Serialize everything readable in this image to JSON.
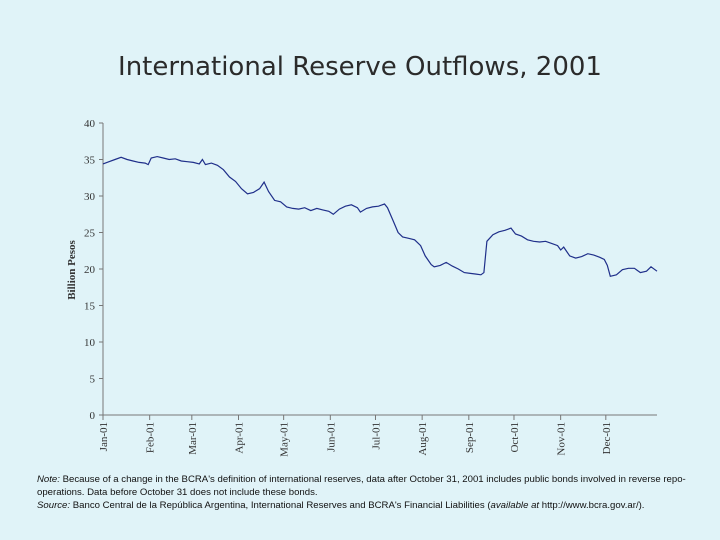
{
  "chart_data": {
    "type": "line",
    "title": "International Reserve Outflows, 2001",
    "ylabel": "Billion Pesos",
    "xlabel": "",
    "ylim": [
      0,
      40
    ],
    "yticks": [
      0,
      5,
      10,
      15,
      20,
      25,
      30,
      35,
      40
    ],
    "xlim": [
      "2001-01-01",
      "2001-12-31"
    ],
    "xtick_labels": [
      "Jan-01",
      "Feb-01",
      "Mar-01",
      "Apr-01",
      "May-01",
      "Jun-01",
      "Jul-01",
      "Aug-01",
      "Sep-01",
      "Oct-01",
      "Nov-01",
      "Dec-01"
    ],
    "xtick_dates": [
      "2001-01-01",
      "2001-02-01",
      "2001-03-01",
      "2001-04-01",
      "2001-05-01",
      "2001-06-01",
      "2001-07-01",
      "2001-08-01",
      "2001-09-01",
      "2001-10-01",
      "2001-11-01",
      "2001-12-01"
    ],
    "grid": false,
    "series": [
      {
        "color": "#1f2f8a",
        "points": [
          [
            "2001-01-01",
            34.4
          ],
          [
            "2001-01-05",
            34.7
          ],
          [
            "2001-01-09",
            35.0
          ],
          [
            "2001-01-13",
            35.3
          ],
          [
            "2001-01-17",
            35.0
          ],
          [
            "2001-01-21",
            34.8
          ],
          [
            "2001-01-25",
            34.6
          ],
          [
            "2001-01-29",
            34.5
          ],
          [
            "2001-01-31",
            34.3
          ],
          [
            "2001-02-02",
            35.2
          ],
          [
            "2001-02-06",
            35.4
          ],
          [
            "2001-02-10",
            35.2
          ],
          [
            "2001-02-14",
            35.0
          ],
          [
            "2001-02-18",
            35.1
          ],
          [
            "2001-02-22",
            34.8
          ],
          [
            "2001-02-26",
            34.7
          ],
          [
            "2001-03-02",
            34.6
          ],
          [
            "2001-03-06",
            34.4
          ],
          [
            "2001-03-08",
            35.0
          ],
          [
            "2001-03-10",
            34.3
          ],
          [
            "2001-03-14",
            34.5
          ],
          [
            "2001-03-18",
            34.2
          ],
          [
            "2001-03-22",
            33.6
          ],
          [
            "2001-03-26",
            32.6
          ],
          [
            "2001-03-30",
            32.0
          ],
          [
            "2001-04-03",
            31.0
          ],
          [
            "2001-04-07",
            30.3
          ],
          [
            "2001-04-11",
            30.5
          ],
          [
            "2001-04-15",
            31.0
          ],
          [
            "2001-04-18",
            31.9
          ],
          [
            "2001-04-21",
            30.6
          ],
          [
            "2001-04-25",
            29.4
          ],
          [
            "2001-04-29",
            29.2
          ],
          [
            "2001-05-03",
            28.5
          ],
          [
            "2001-05-07",
            28.3
          ],
          [
            "2001-05-11",
            28.2
          ],
          [
            "2001-05-15",
            28.4
          ],
          [
            "2001-05-19",
            28.0
          ],
          [
            "2001-05-23",
            28.3
          ],
          [
            "2001-05-27",
            28.1
          ],
          [
            "2001-05-31",
            27.9
          ],
          [
            "2001-06-03",
            27.5
          ],
          [
            "2001-06-07",
            28.2
          ],
          [
            "2001-06-11",
            28.6
          ],
          [
            "2001-06-15",
            28.8
          ],
          [
            "2001-06-19",
            28.4
          ],
          [
            "2001-06-21",
            27.8
          ],
          [
            "2001-06-25",
            28.3
          ],
          [
            "2001-06-29",
            28.5
          ],
          [
            "2001-07-03",
            28.6
          ],
          [
            "2001-07-07",
            28.9
          ],
          [
            "2001-07-09",
            28.4
          ],
          [
            "2001-07-13",
            26.5
          ],
          [
            "2001-07-16",
            25.0
          ],
          [
            "2001-07-19",
            24.4
          ],
          [
            "2001-07-23",
            24.2
          ],
          [
            "2001-07-27",
            24.0
          ],
          [
            "2001-07-31",
            23.2
          ],
          [
            "2001-08-03",
            21.8
          ],
          [
            "2001-08-07",
            20.6
          ],
          [
            "2001-08-09",
            20.3
          ],
          [
            "2001-08-13",
            20.5
          ],
          [
            "2001-08-17",
            20.9
          ],
          [
            "2001-08-21",
            20.4
          ],
          [
            "2001-08-25",
            20.0
          ],
          [
            "2001-08-29",
            19.5
          ],
          [
            "2001-09-02",
            19.4
          ],
          [
            "2001-09-06",
            19.3
          ],
          [
            "2001-09-09",
            19.2
          ],
          [
            "2001-09-11",
            19.5
          ],
          [
            "2001-09-13",
            23.8
          ],
          [
            "2001-09-17",
            24.7
          ],
          [
            "2001-09-21",
            25.1
          ],
          [
            "2001-09-25",
            25.3
          ],
          [
            "2001-09-29",
            25.6
          ],
          [
            "2001-10-02",
            24.8
          ],
          [
            "2001-10-06",
            24.5
          ],
          [
            "2001-10-10",
            24.0
          ],
          [
            "2001-10-14",
            23.8
          ],
          [
            "2001-10-18",
            23.7
          ],
          [
            "2001-10-22",
            23.8
          ],
          [
            "2001-10-26",
            23.5
          ],
          [
            "2001-10-30",
            23.2
          ],
          [
            "2001-11-01",
            22.6
          ],
          [
            "2001-11-03",
            23.0
          ],
          [
            "2001-11-07",
            21.8
          ],
          [
            "2001-11-11",
            21.5
          ],
          [
            "2001-11-15",
            21.7
          ],
          [
            "2001-11-19",
            22.1
          ],
          [
            "2001-11-23",
            21.9
          ],
          [
            "2001-11-27",
            21.6
          ],
          [
            "2001-11-30",
            21.3
          ],
          [
            "2001-12-02",
            20.5
          ],
          [
            "2001-12-04",
            19.0
          ],
          [
            "2001-12-08",
            19.2
          ],
          [
            "2001-12-12",
            19.9
          ],
          [
            "2001-12-16",
            20.1
          ],
          [
            "2001-12-20",
            20.1
          ],
          [
            "2001-12-24",
            19.5
          ],
          [
            "2001-12-28",
            19.7
          ],
          [
            "2001-12-31",
            20.3
          ],
          [
            "2002-01-04",
            19.7
          ]
        ]
      }
    ]
  },
  "notes": {
    "note_label": "Note:",
    "note_text": " Because of a change in the BCRA's definition of international reserves, data after October 31, 2001 includes public bonds involved in reverse repo-operations. Data before October 31 does not include these bonds.",
    "source_label": "Source:",
    "source_text_1": " Banco Central de la República Argentina, International Reserves and BCRA's Financial Liabilities (",
    "source_italic": "available at",
    "source_text_2": " http://www.bcra.gov.ar/)."
  }
}
